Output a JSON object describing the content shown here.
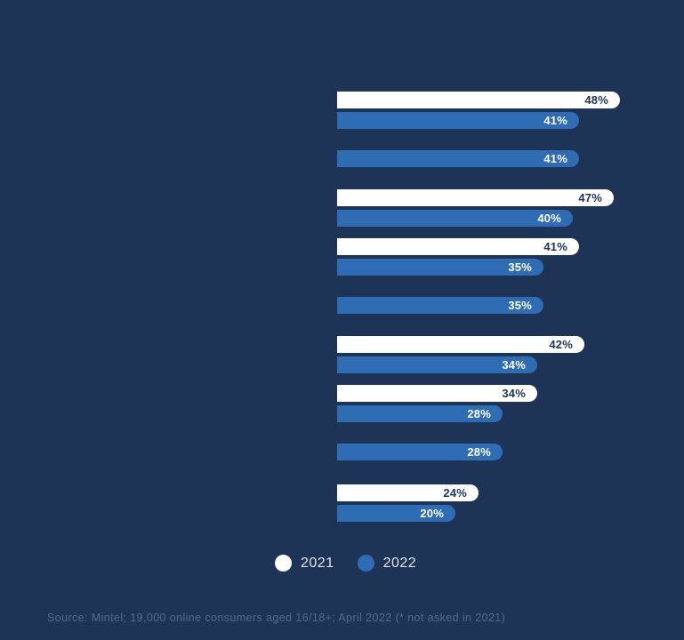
{
  "chart_data": {
    "type": "bar",
    "orientation": "horizontal",
    "title": "",
    "value_suffix": "%",
    "categories": [
      "",
      "",
      "",
      "",
      "",
      "",
      "",
      "",
      ""
    ],
    "series": [
      {
        "name": "2021",
        "color": "#ffffff",
        "values": [
          48,
          null,
          47,
          41,
          null,
          42,
          34,
          null,
          24
        ]
      },
      {
        "name": "2022",
        "color": "#2e6cb4",
        "values": [
          41,
          41,
          40,
          35,
          35,
          34,
          28,
          28,
          20
        ]
      }
    ],
    "xlim": [
      0,
      59
    ],
    "grid": false,
    "legend_position": "bottom",
    "data_labels": "inside-end",
    "notes": "categories not labeled in image; rows 2, 5 and 8 have no 2021 bar (not asked in 2021)"
  },
  "legend": {
    "items": [
      {
        "label": "2021",
        "color": "#ffffff"
      },
      {
        "label": "2022",
        "color": "#2e6cb4"
      }
    ]
  },
  "source_note": "Source: Mintel; 19,000 online consumers aged 16/18+; April 2022 (* not asked in 2021)",
  "colors": {
    "background": "#1e3456",
    "bar_2021": "#ffffff",
    "bar_2022": "#2e6cb4",
    "label_on_white": "#1e3456",
    "label_on_blue": "#ffffff",
    "legend_text": "#dfe4ee",
    "source_text": "#56688a"
  }
}
